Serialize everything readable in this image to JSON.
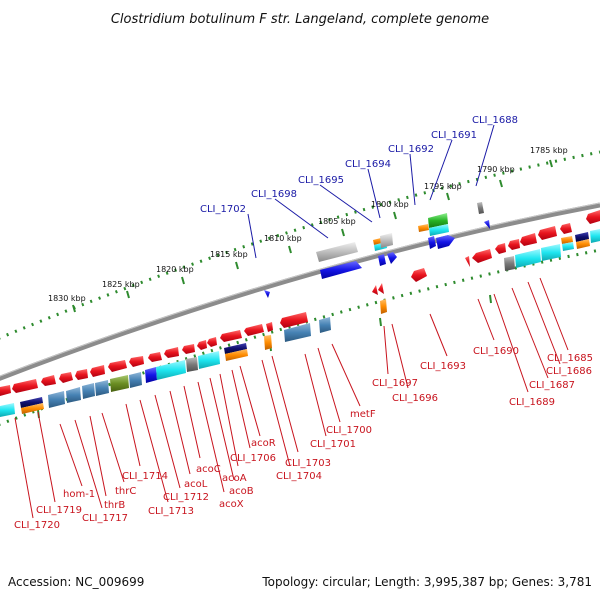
{
  "header": {
    "title": "Clostridium botulinum F str. Langeland, complete genome"
  },
  "footer": {
    "accession": "Accession: NC_009699",
    "topology": "Topology: circular; Length: 3,995,387 bp; Genes: 3,781"
  },
  "ruler": {
    "ticks": [
      {
        "label": "1785 kbp",
        "pos": 1785
      },
      {
        "label": "1790 kbp",
        "pos": 1790
      },
      {
        "label": "1795 kbp",
        "pos": 1795
      },
      {
        "label": "1800 kbp",
        "pos": 1800
      },
      {
        "label": "1805 kbp",
        "pos": 1805
      },
      {
        "label": "1810 kbp",
        "pos": 1810
      },
      {
        "label": "1815 kbp",
        "pos": 1815
      },
      {
        "label": "1820 kbp",
        "pos": 1820
      },
      {
        "label": "1825 kbp",
        "pos": 1825
      },
      {
        "label": "1830 kbp",
        "pos": 1830
      }
    ]
  },
  "colors": {
    "forward_gene_label": "#1a1aa6",
    "reverse_gene_label": "#c8141e",
    "backbone": "#8c8c8c",
    "tick": "#2e8b2e",
    "red_gene": "#e8141e",
    "blue_gene": "#1414e6",
    "cyan_box": "#1ee6f0",
    "steelblue_box": "#4682b4",
    "gray_box": "#8a8a8a",
    "olive_box": "#6b8e23",
    "green_box": "#28b428",
    "orange_box": "#ff8c00",
    "navy_box": "#10106e"
  },
  "forward_labels": [
    "CLI_1702",
    "CLI_1698",
    "CLI_1695",
    "CLI_1694",
    "CLI_1692",
    "CLI_1691",
    "CLI_1688"
  ],
  "reverse_labels": [
    "CLI_1720",
    "CLI_1719",
    "hom-1",
    "CLI_1717",
    "thrB",
    "thrC",
    "CLI_1714",
    "CLI_1713",
    "CLI_1712",
    "acoL",
    "acoC",
    "acoX",
    "acoB",
    "acoA",
    "CLI_1706",
    "acoR",
    "CLI_1704",
    "CLI_1703",
    "CLI_1701",
    "CLI_1700",
    "metF",
    "CLI_1697",
    "CLI_1696",
    "CLI_1693",
    "CLI_1690",
    "CLI_1689",
    "CLI_1687",
    "CLI_1686",
    "CLI_1685"
  ]
}
